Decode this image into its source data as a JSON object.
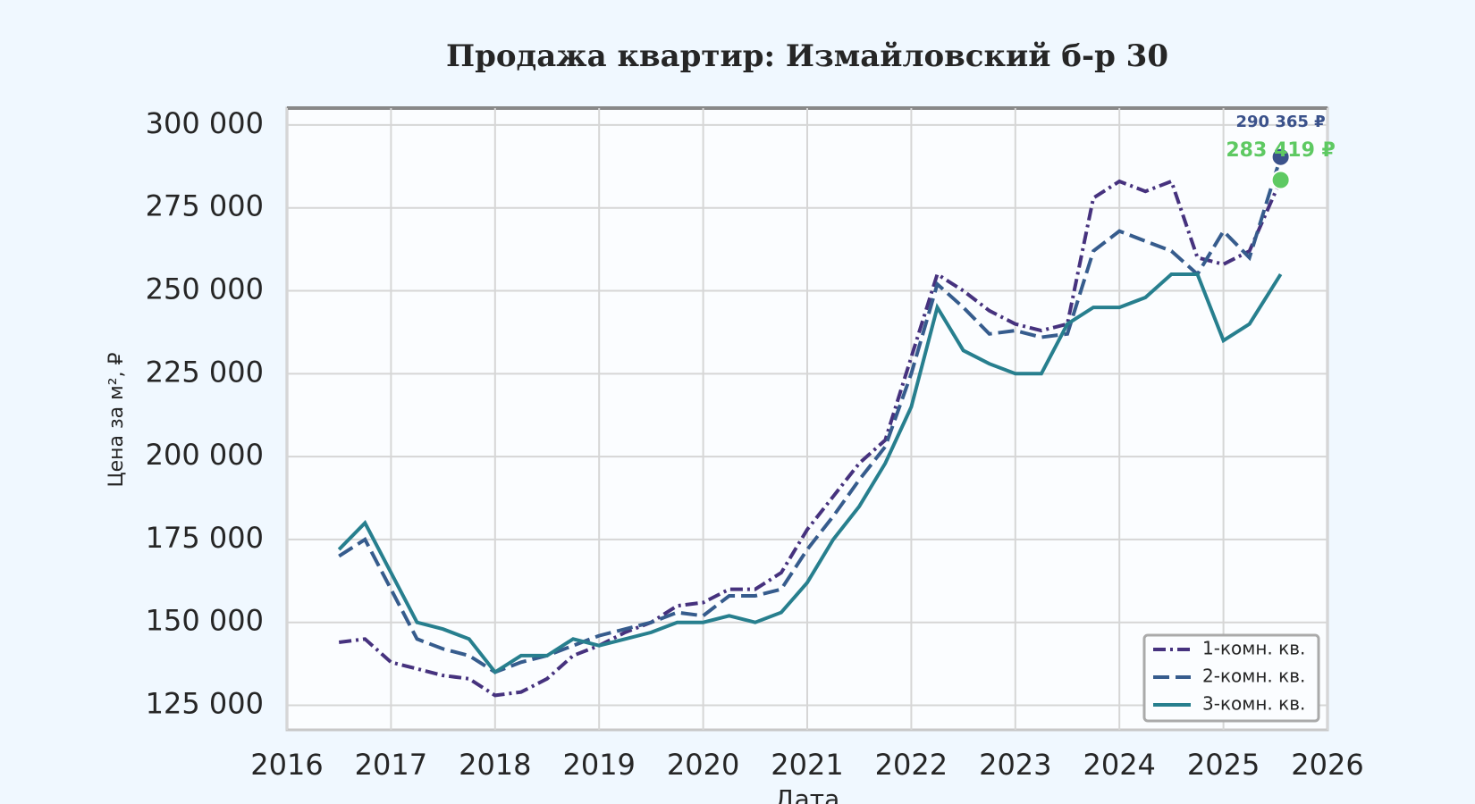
{
  "chart_data": {
    "type": "line",
    "title": "Продажа квартир: Измайловский б-р 30",
    "x_label": "Дата",
    "y_label": "Цена за м², ₽",
    "x": [
      2016.5,
      2016.75,
      2017,
      2017.25,
      2017.5,
      2017.75,
      2018,
      2018.25,
      2018.5,
      2018.75,
      2019,
      2019.25,
      2019.5,
      2019.75,
      2020,
      2020.25,
      2020.5,
      2020.75,
      2021,
      2021.25,
      2021.5,
      2021.75,
      2022,
      2022.25,
      2022.5,
      2022.75,
      2023,
      2023.25,
      2023.5,
      2023.75,
      2024,
      2024.25,
      2024.5,
      2024.75,
      2025,
      2025.25,
      2025.55
    ],
    "series": [
      {
        "name": "1-комн. кв.",
        "color": "#46327e",
        "style": "dashdot",
        "values": [
          144000,
          145000,
          138000,
          136000,
          134000,
          133000,
          128000,
          129000,
          133000,
          140000,
          143000,
          147000,
          150000,
          155000,
          156000,
          160000,
          160000,
          165000,
          178000,
          188000,
          198000,
          205000,
          230000,
          255000,
          250000,
          244000,
          240000,
          238000,
          240000,
          278000,
          283000,
          280000,
          283000,
          260000,
          258000,
          262000,
          283419
        ]
      },
      {
        "name": "2-комн. кв.",
        "color": "#365c8d",
        "style": "dashed",
        "values": [
          170000,
          175000,
          160000,
          145000,
          142000,
          140000,
          135000,
          138000,
          140000,
          143000,
          146000,
          148000,
          150000,
          153000,
          152000,
          158000,
          158000,
          160000,
          172000,
          182000,
          193000,
          203000,
          225000,
          252000,
          245000,
          237000,
          238000,
          236000,
          237000,
          262000,
          268000,
          265000,
          262000,
          255000,
          268000,
          260000,
          290365
        ]
      },
      {
        "name": "3-комн. кв.",
        "color": "#277f8e",
        "style": "solid",
        "values": [
          172000,
          180000,
          165000,
          150000,
          148000,
          145000,
          135000,
          140000,
          140000,
          145000,
          143000,
          145000,
          147000,
          150000,
          150000,
          152000,
          150000,
          153000,
          162000,
          175000,
          185000,
          198000,
          215000,
          245000,
          232000,
          228000,
          225000,
          225000,
          240000,
          245000,
          245000,
          248000,
          255000,
          255000,
          235000,
          240000,
          255000
        ]
      }
    ],
    "annotations": [
      {
        "x": 2025.55,
        "value": 290365,
        "label": "290 365 ₽",
        "color": "#3b528b"
      },
      {
        "x": 2025.55,
        "value": 283419,
        "label": "283 419 ₽",
        "color": "#5ec962"
      }
    ],
    "xlim": [
      2016,
      2026
    ],
    "xticks": [
      2016,
      2017,
      2018,
      2019,
      2020,
      2021,
      2022,
      2023,
      2024,
      2025,
      2026
    ],
    "ylim": [
      117600,
      305100
    ],
    "yticks": [
      {
        "value": 125000,
        "label": "125 000"
      },
      {
        "value": 150000,
        "label": "150 000"
      },
      {
        "value": 175000,
        "label": "175 000"
      },
      {
        "value": 200000,
        "label": "200 000"
      },
      {
        "value": 225000,
        "label": "225 000"
      },
      {
        "value": 250000,
        "label": "250 000"
      },
      {
        "value": 275000,
        "label": "275 000"
      },
      {
        "value": 300000,
        "label": "300 000"
      }
    ],
    "grid": true,
    "legend": "lower right"
  }
}
